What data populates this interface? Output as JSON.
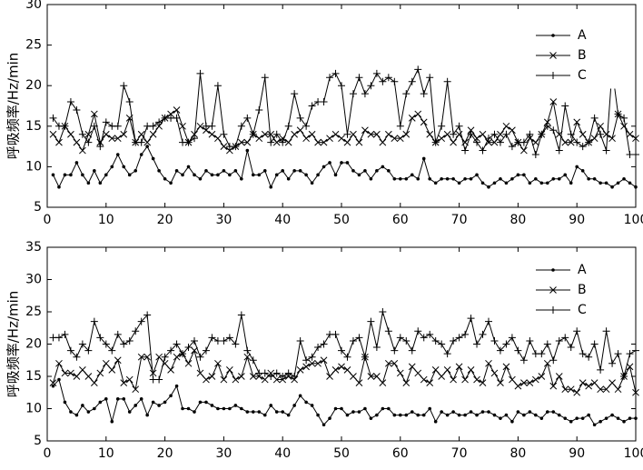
{
  "chart_data": [
    {
      "type": "line",
      "ylabel": "呼吸频率/Hz/min",
      "legend": "upper right",
      "xlim": [
        0,
        100
      ],
      "xticks": [
        0,
        10,
        20,
        30,
        40,
        50,
        60,
        70,
        80,
        90,
        100
      ],
      "ylim": [
        5,
        30
      ],
      "yticks": [
        5,
        10,
        15,
        20,
        25,
        30
      ],
      "x": [
        1,
        2,
        3,
        4,
        5,
        6,
        7,
        8,
        9,
        10,
        11,
        12,
        13,
        14,
        15,
        16,
        17,
        18,
        19,
        20,
        21,
        22,
        23,
        24,
        25,
        26,
        27,
        28,
        29,
        30,
        31,
        32,
        33,
        34,
        35,
        36,
        37,
        38,
        39,
        40,
        41,
        42,
        43,
        44,
        45,
        46,
        47,
        48,
        49,
        50,
        51,
        52,
        53,
        54,
        55,
        56,
        57,
        58,
        59,
        60,
        61,
        62,
        63,
        64,
        65,
        66,
        67,
        68,
        69,
        70,
        71,
        72,
        73,
        74,
        75,
        76,
        77,
        78,
        79,
        80,
        81,
        82,
        83,
        84,
        85,
        86,
        87,
        88,
        89,
        90,
        91,
        92,
        93,
        94,
        95,
        96,
        97,
        98,
        99,
        100
      ],
      "series": [
        {
          "name": "A",
          "color": "#000000",
          "marker": "dot",
          "values": [
            9,
            7.5,
            9,
            9,
            10.5,
            9,
            8,
            9.5,
            8,
            9,
            10,
            11.5,
            10,
            9,
            9.5,
            11.5,
            12.5,
            11,
            9.5,
            8.5,
            8,
            9.5,
            9,
            10,
            9,
            8.5,
            9.5,
            9,
            9,
            9.5,
            9,
            9.5,
            8.5,
            12,
            9,
            9,
            9.5,
            7.5,
            9,
            9.5,
            8.5,
            9.5,
            9.5,
            9,
            8,
            9,
            10,
            10.5,
            9,
            10.5,
            10.5,
            9.5,
            9,
            9.5,
            8.5,
            9.5,
            10,
            9.5,
            8.5,
            8.5,
            8.5,
            9,
            8.5,
            11,
            8.5,
            8,
            8.5,
            8.5,
            8.5,
            8,
            8.5,
            8.5,
            9,
            8,
            7.5,
            8,
            8.5,
            8,
            8.5,
            9,
            9,
            8,
            8.5,
            8,
            8,
            8.5,
            8.5,
            9,
            8,
            10,
            9.5,
            8.5,
            8.5,
            8,
            8,
            7.5,
            8,
            8.5,
            8,
            7.5
          ]
        },
        {
          "name": "B",
          "color": "#000000",
          "marker": "x",
          "values": [
            14,
            13,
            15,
            14,
            13,
            12,
            14,
            16.5,
            13,
            14,
            13.5,
            13.5,
            14,
            16,
            13,
            14,
            13,
            14,
            15,
            16,
            16.5,
            17,
            15,
            13,
            14,
            15,
            14.5,
            14,
            13.5,
            12.5,
            12,
            12.5,
            13,
            13,
            14,
            13.5,
            14,
            14,
            13,
            13.5,
            13,
            14,
            14.5,
            13.5,
            14,
            13,
            13,
            13.5,
            14,
            13.5,
            13,
            14,
            13,
            14.5,
            14,
            14,
            13,
            14,
            13.5,
            13.5,
            14,
            16,
            16.5,
            15.5,
            14,
            13,
            13.5,
            14,
            13,
            14,
            13,
            14.5,
            13.5,
            14,
            13,
            13,
            14,
            15,
            14.5,
            13,
            12,
            13.5,
            13,
            14,
            15.5,
            18,
            14,
            13,
            13,
            15.5,
            14,
            13,
            13.5,
            15,
            14,
            13.5,
            16.5,
            15,
            14,
            13.5
          ]
        },
        {
          "name": "C",
          "color": "#000000",
          "marker": "plus",
          "values": [
            16,
            15,
            15,
            18,
            17,
            14,
            13,
            15,
            12.5,
            15.5,
            15,
            15,
            20,
            18,
            13,
            13,
            15,
            15,
            15.5,
            16,
            16,
            16,
            13,
            13,
            13.5,
            21.5,
            15,
            15,
            20,
            14,
            12.5,
            12.5,
            15,
            16,
            14,
            17,
            21,
            13,
            14,
            13,
            15,
            19,
            16,
            15,
            17.5,
            18,
            18,
            21,
            21.5,
            20,
            14,
            19,
            21,
            19,
            20,
            21.5,
            20.5,
            21,
            20.5,
            15,
            19,
            20.5,
            22,
            19,
            21,
            13,
            15,
            20.5,
            14,
            15,
            12,
            14,
            13,
            12,
            13.5,
            14,
            13,
            14,
            12.5,
            13,
            13,
            14,
            11.5,
            14,
            15,
            14.5,
            12,
            17.5,
            14,
            13,
            12.5,
            13,
            16,
            14,
            12,
            22,
            16.5,
            16,
            11.5,
            11.5
          ]
        }
      ]
    },
    {
      "type": "line",
      "ylabel": "呼吸频率/Hz/min",
      "legend": "upper right",
      "xlim": [
        0,
        100
      ],
      "xticks": [
        0,
        10,
        20,
        30,
        40,
        50,
        60,
        70,
        80,
        90,
        100
      ],
      "ylim": [
        5,
        35
      ],
      "yticks": [
        5,
        10,
        15,
        20,
        25,
        30,
        35
      ],
      "x": [
        1,
        2,
        3,
        4,
        5,
        6,
        7,
        8,
        9,
        10,
        11,
        12,
        13,
        14,
        15,
        16,
        17,
        18,
        19,
        20,
        21,
        22,
        23,
        24,
        25,
        26,
        27,
        28,
        29,
        30,
        31,
        32,
        33,
        34,
        35,
        36,
        37,
        38,
        39,
        40,
        41,
        42,
        43,
        44,
        45,
        46,
        47,
        48,
        49,
        50,
        51,
        52,
        53,
        54,
        55,
        56,
        57,
        58,
        59,
        60,
        61,
        62,
        63,
        64,
        65,
        66,
        67,
        68,
        69,
        70,
        71,
        72,
        73,
        74,
        75,
        76,
        77,
        78,
        79,
        80,
        81,
        82,
        83,
        84,
        85,
        86,
        87,
        88,
        89,
        90,
        91,
        92,
        93,
        94,
        95,
        96,
        97,
        98,
        99,
        100
      ],
      "series": [
        {
          "name": "A",
          "color": "#000000",
          "marker": "dot",
          "values": [
            13.5,
            14.5,
            11,
            9.5,
            9,
            10.5,
            9.5,
            10,
            11,
            11.5,
            8,
            11.5,
            11.5,
            9.5,
            10.5,
            11.5,
            9,
            11,
            10.5,
            11,
            12,
            13.5,
            10,
            10,
            9.5,
            11,
            11,
            10.5,
            10,
            10,
            10,
            10.5,
            10,
            9.5,
            9.5,
            9.5,
            9,
            10.5,
            9.5,
            9.5,
            9,
            10.5,
            12,
            11,
            10.5,
            9,
            7.5,
            8.5,
            10,
            10,
            9,
            9.5,
            9.5,
            10,
            8.5,
            9,
            10,
            10,
            9,
            9,
            9,
            9.5,
            9,
            9,
            10,
            8,
            9.5,
            9,
            9.5,
            9,
            9,
            9.5,
            9,
            9.5,
            9.5,
            9,
            8.5,
            9,
            8,
            9.5,
            9,
            9.5,
            9,
            8.5,
            9.5,
            9.5,
            9,
            8.5,
            8,
            8.5,
            8.5,
            9,
            7.5,
            8,
            8.5,
            9,
            8.5,
            8,
            8.5,
            8.5
          ]
        },
        {
          "name": "B",
          "color": "#000000",
          "marker": "x",
          "values": [
            14,
            17,
            15.5,
            15.5,
            15,
            16,
            15,
            14,
            15.5,
            17,
            16,
            17.5,
            14,
            14.5,
            13,
            18,
            18,
            15.5,
            18,
            17,
            16,
            18,
            18.5,
            17,
            19,
            15.5,
            14.5,
            15,
            17,
            14.5,
            16,
            14.5,
            15,
            18,
            15,
            15,
            14.5,
            15.5,
            14.5,
            14.5,
            15,
            14.5,
            16,
            16.5,
            17,
            17,
            17.5,
            15,
            16,
            16.5,
            16,
            15,
            14,
            18,
            15,
            15,
            14,
            17,
            17,
            15.5,
            14,
            16.5,
            15.5,
            14.5,
            14,
            16,
            15,
            16,
            14.5,
            16.5,
            14.5,
            16,
            14.5,
            14,
            17,
            15.5,
            14,
            16.5,
            14.5,
            13.5,
            14,
            14,
            14.5,
            15,
            17,
            13.5,
            15,
            13,
            13,
            12.5,
            14,
            13.5,
            14,
            13,
            13,
            14,
            13,
            15,
            16.5,
            12.5
          ]
        },
        {
          "name": "C",
          "color": "#000000",
          "marker": "plus",
          "values": [
            21,
            21,
            21.5,
            19,
            18,
            20,
            19,
            23.5,
            21,
            20,
            19,
            21.5,
            20,
            20.5,
            22,
            23.5,
            24.5,
            14.5,
            14.5,
            18,
            19,
            20,
            18.5,
            19.5,
            20.5,
            18,
            19,
            21,
            20.5,
            20.5,
            21,
            20,
            24.5,
            19,
            17.5,
            15.5,
            15.5,
            15,
            15.5,
            15,
            15.5,
            15,
            20.5,
            17.5,
            18,
            19.5,
            20,
            21.5,
            21.5,
            19,
            18,
            20.5,
            21,
            18,
            23.5,
            19.5,
            25,
            22,
            19,
            21,
            20.5,
            19,
            22,
            21,
            21.5,
            20.5,
            20,
            18.5,
            20.5,
            21,
            21.5,
            24,
            20,
            21.5,
            23.5,
            20.5,
            19,
            20,
            21,
            19,
            17.5,
            20.5,
            18.5,
            18.5,
            20,
            17.5,
            20.5,
            21,
            19.5,
            22,
            18.5,
            18,
            20,
            16,
            22,
            17,
            18.5,
            15,
            18.5,
            19
          ]
        }
      ]
    }
  ]
}
